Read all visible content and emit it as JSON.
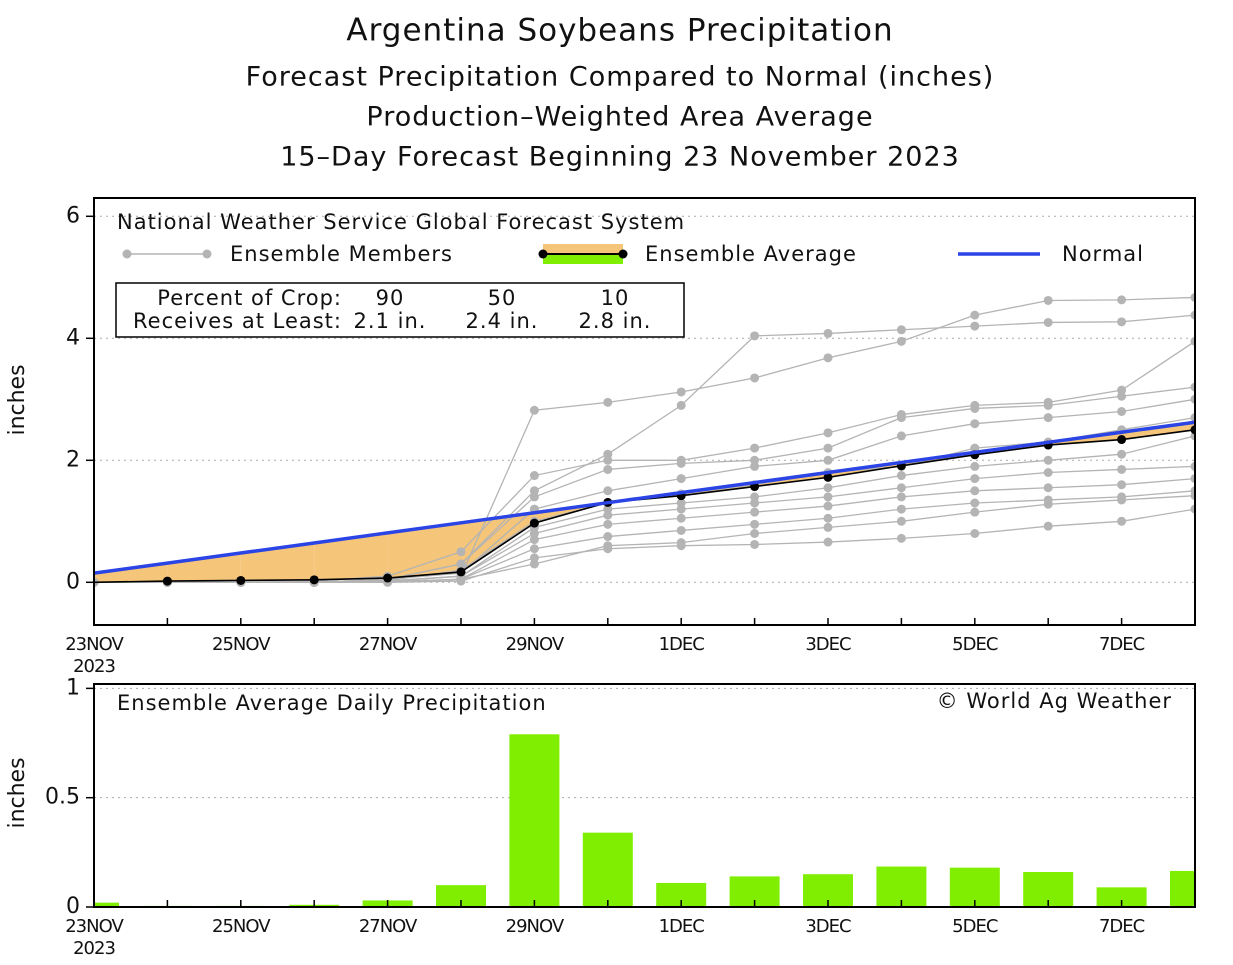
{
  "chart_data": [
    {
      "type": "line",
      "title": "Argentina Soybeans Precipitation",
      "subtitles": [
        "Forecast Precipitation Compared to Normal (inches)",
        "Production–Weighted Area Average",
        "15–Day Forecast Beginning 23 November 2023"
      ],
      "legend_title": "National Weather Service Global Forecast System",
      "ylabel": "inches",
      "categories": [
        "23NOV",
        null,
        "25NOV",
        null,
        "27NOV",
        null,
        "29NOV",
        null,
        "1DEC",
        null,
        "3DEC",
        null,
        "5DEC",
        null,
        "7DEC",
        null
      ],
      "x_year": "2023",
      "ylim": [
        -0.7,
        6.3
      ],
      "yticks": [
        0,
        2,
        4,
        6
      ],
      "grid": true,
      "crop_table": {
        "row_labels": [
          "Percent of Crop:",
          "Receives at Least:"
        ],
        "percent": [
          90,
          50,
          10
        ],
        "amounts": [
          "2.1 in.",
          "2.4 in.",
          "2.8 in."
        ]
      },
      "series": [
        {
          "name": "Ensemble Members",
          "color": "#b4b4b4",
          "values": [
            [
              0,
              0,
              0,
              0,
              0.02,
              0.1,
              2.82,
              2.95,
              3.12,
              3.35,
              3.68,
              3.95,
              4.38,
              4.62,
              4.63,
              4.67
            ],
            [
              0,
              0,
              0,
              0,
              0.05,
              0.3,
              1.5,
              2.1,
              2.9,
              4.04,
              4.08,
              4.14,
              4.2,
              4.26,
              4.27,
              4.38
            ],
            [
              0,
              0,
              0,
              0.02,
              0.1,
              0.5,
              1.75,
              2.0,
              2.0,
              2.2,
              2.45,
              2.75,
              2.9,
              2.95,
              3.15,
              3.95
            ],
            [
              0,
              0,
              0,
              0,
              0.05,
              0.3,
              1.4,
              1.85,
              1.95,
              2.0,
              2.2,
              2.7,
              2.85,
              2.9,
              3.05,
              3.2
            ],
            [
              0,
              0,
              0,
              0,
              0.05,
              0.15,
              1.2,
              1.5,
              1.7,
              1.9,
              2.0,
              2.4,
              2.6,
              2.7,
              2.8,
              3.0
            ],
            [
              0,
              0,
              0,
              0,
              0.03,
              0.2,
              1.0,
              1.3,
              1.45,
              1.6,
              1.8,
              1.9,
              2.2,
              2.3,
              2.5,
              2.7
            ],
            [
              0,
              0,
              0,
              0,
              0.02,
              0.1,
              0.9,
              1.2,
              1.3,
              1.4,
              1.55,
              1.75,
              1.9,
              2.0,
              2.1,
              2.4
            ],
            [
              0,
              0,
              0,
              0,
              0.02,
              0.1,
              0.8,
              1.1,
              1.2,
              1.3,
              1.4,
              1.55,
              1.7,
              1.8,
              1.85,
              1.9
            ],
            [
              0,
              0,
              0,
              0,
              0.01,
              0.05,
              0.7,
              0.95,
              1.05,
              1.15,
              1.25,
              1.4,
              1.5,
              1.55,
              1.6,
              1.7
            ],
            [
              0,
              0,
              0,
              0,
              0.01,
              0.05,
              0.55,
              0.75,
              0.85,
              0.95,
              1.05,
              1.2,
              1.3,
              1.35,
              1.4,
              1.5
            ],
            [
              0,
              0,
              0,
              0,
              0,
              0.02,
              0.4,
              0.55,
              0.6,
              0.62,
              0.66,
              0.72,
              0.8,
              0.92,
              1.0,
              1.2
            ],
            [
              0,
              0,
              0,
              0,
              0,
              0.05,
              0.3,
              0.6,
              0.65,
              0.8,
              0.9,
              1.0,
              1.15,
              1.28,
              1.35,
              1.42
            ]
          ]
        },
        {
          "name": "Ensemble Average",
          "color": "#000000",
          "fill_below": "#f5c57a",
          "fill_above": "#80ee00",
          "values": [
            0,
            0.02,
            0.03,
            0.04,
            0.07,
            0.17,
            0.97,
            1.31,
            1.42,
            1.57,
            1.72,
            1.91,
            2.09,
            2.25,
            2.34,
            2.5
          ]
        },
        {
          "name": "Normal",
          "color": "#2b44e6",
          "values": [
            0.15,
            0.315,
            0.48,
            0.645,
            0.81,
            0.975,
            1.14,
            1.305,
            1.47,
            1.635,
            1.8,
            1.965,
            2.13,
            2.295,
            2.46,
            2.625
          ]
        }
      ]
    },
    {
      "type": "bar",
      "annotation": "Ensemble Average Daily Precipitation",
      "credit": "© World Ag Weather",
      "ylabel": "inches",
      "categories": [
        "23NOV",
        null,
        "25NOV",
        null,
        "27NOV",
        null,
        "29NOV",
        null,
        "1DEC",
        null,
        "3DEC",
        null,
        "5DEC",
        null,
        "7DEC",
        null
      ],
      "x_year": "2023",
      "values": [
        0.02,
        0.005,
        0.005,
        0.01,
        0.03,
        0.1,
        0.79,
        0.34,
        0.11,
        0.14,
        0.15,
        0.185,
        0.18,
        0.16,
        0.09,
        0.165
      ],
      "color": "#80ee00",
      "ylim": [
        0,
        1.02
      ],
      "yticks": [
        0,
        0.5,
        1
      ],
      "grid": true
    }
  ]
}
